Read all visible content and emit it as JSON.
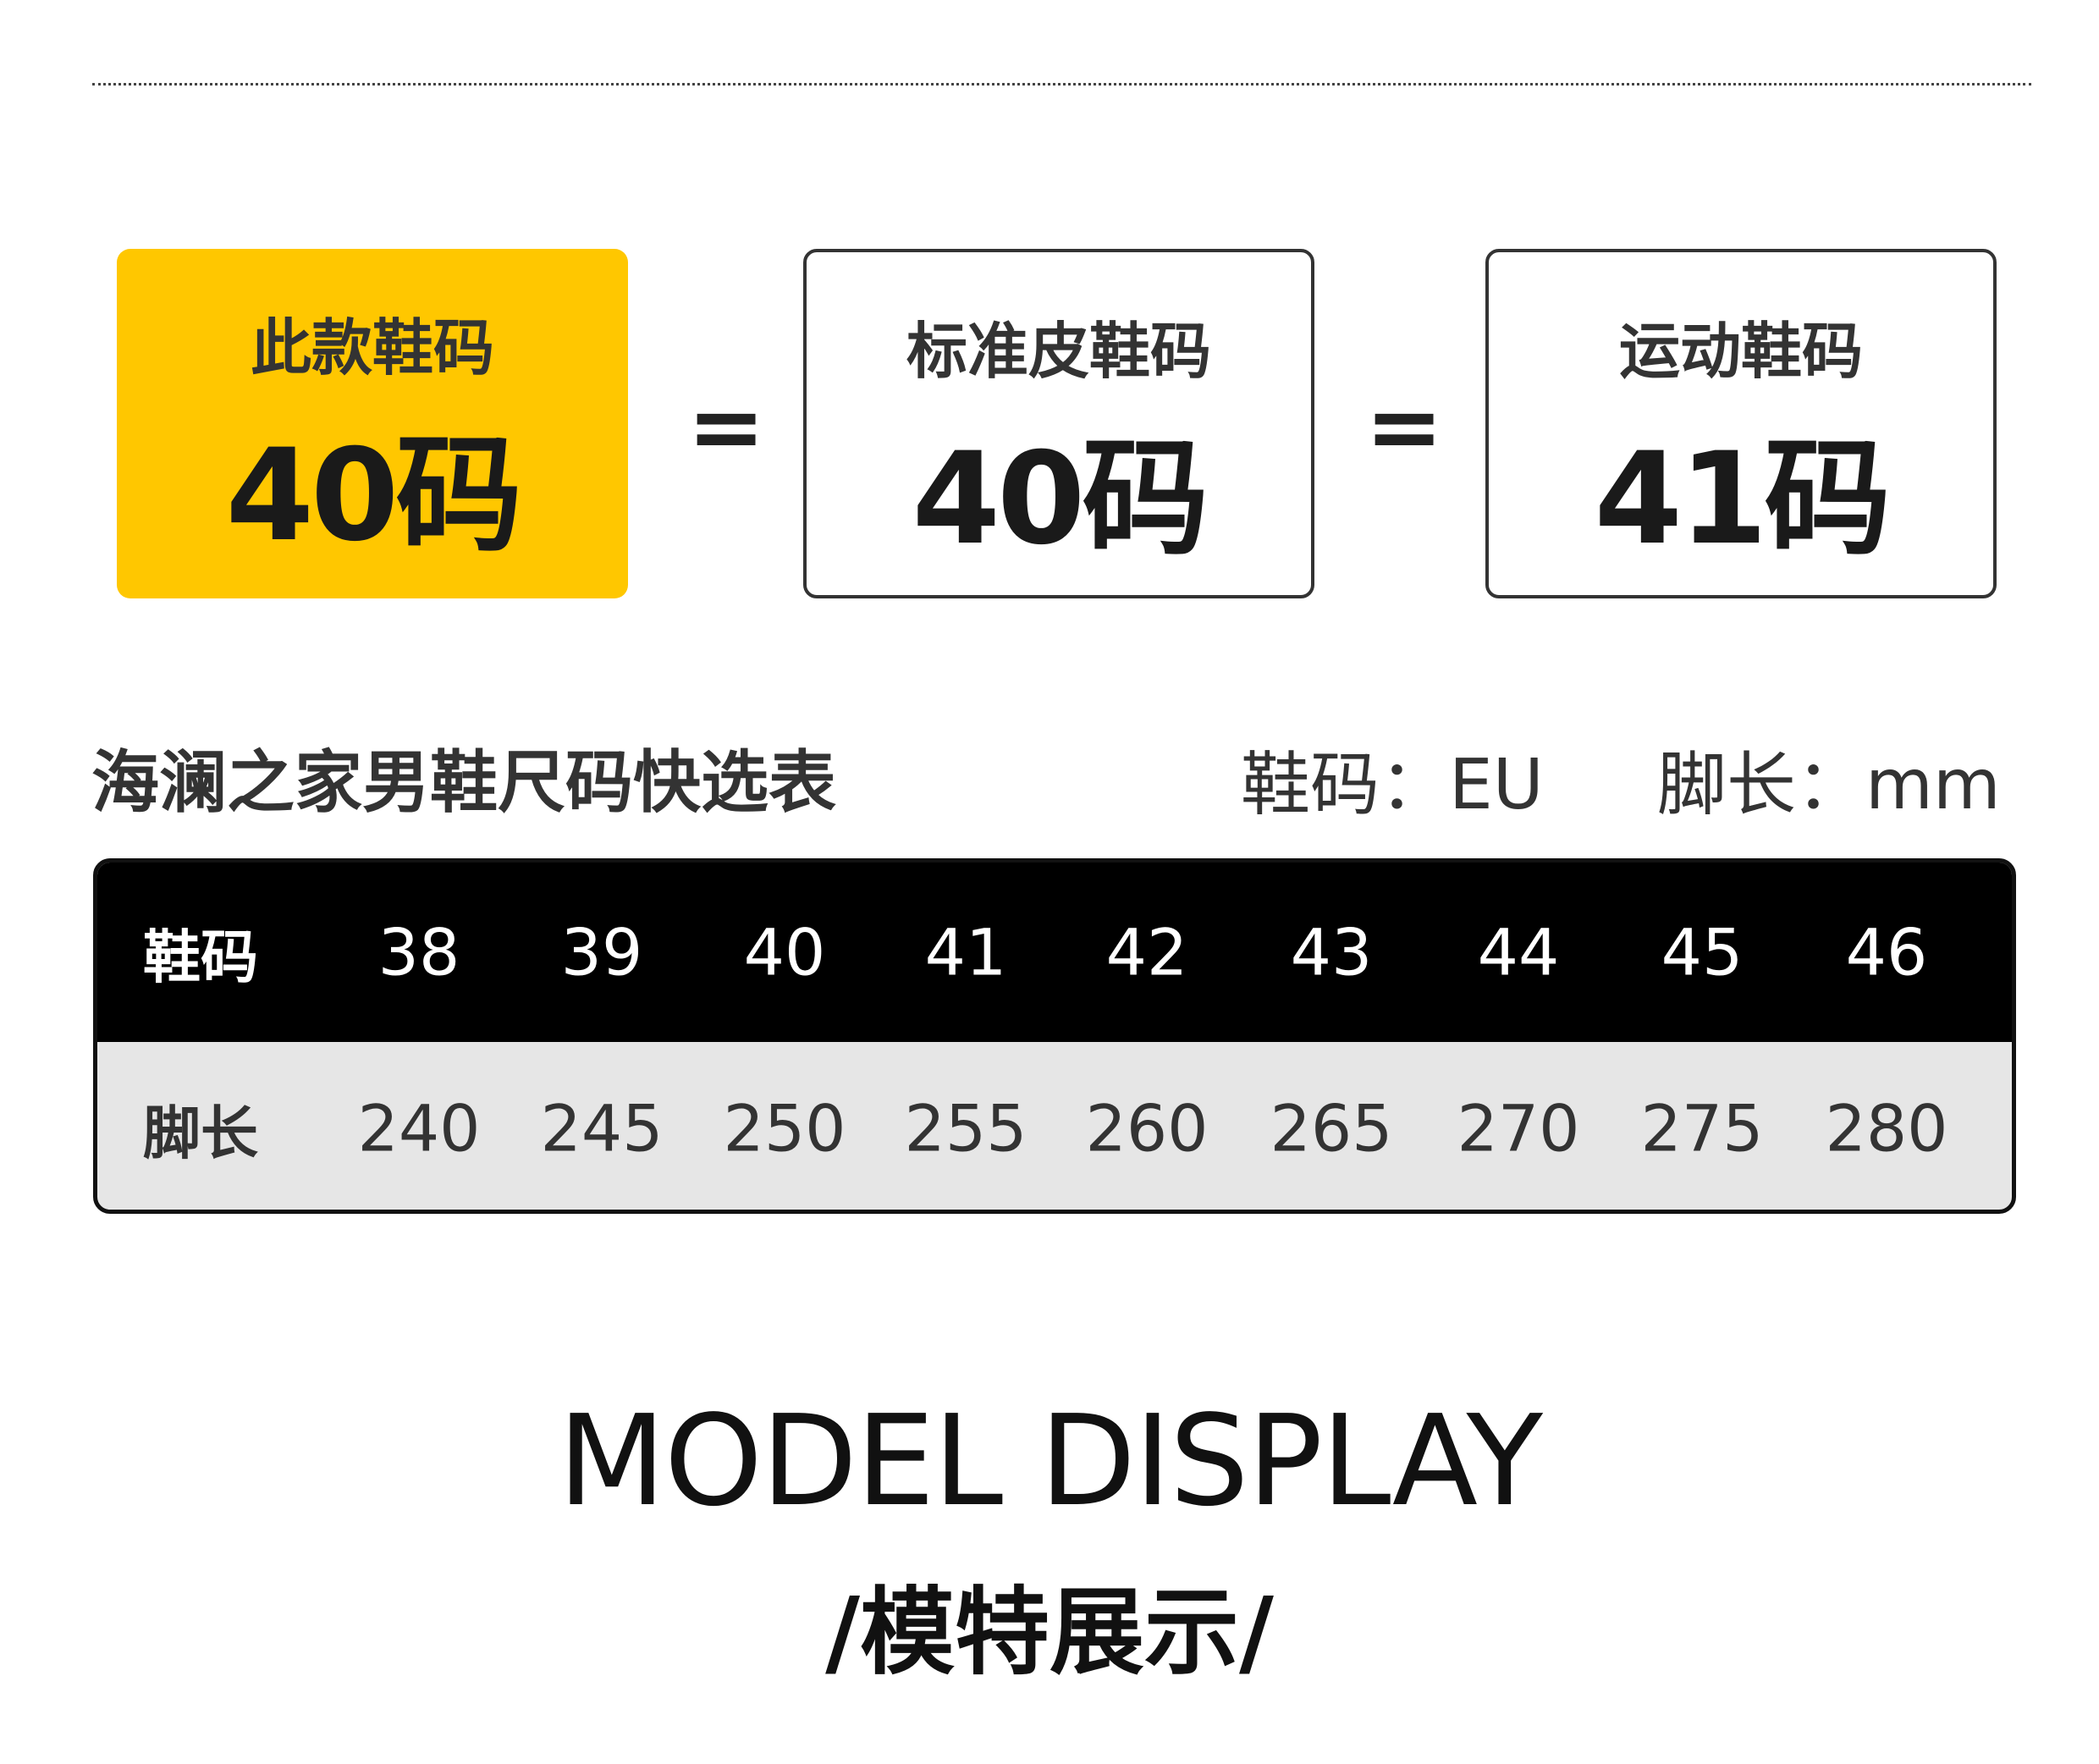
{
  "comparison": {
    "this_model": {
      "label": "此款鞋码",
      "value": "40码"
    },
    "standard_leather": {
      "label": "标准皮鞋码",
      "value": "40码"
    },
    "sports": {
      "label": "运动鞋码",
      "value": "41码"
    },
    "equals": "=",
    "highlight_color": "#FFC700"
  },
  "size_table": {
    "title": "海澜之家男鞋尺码快选表",
    "size_unit": "鞋码：EU",
    "length_unit": "脚长：mm",
    "rows": [
      {
        "label": "鞋码",
        "values": [
          "38",
          "39",
          "40",
          "41",
          "42",
          "43",
          "44",
          "45",
          "46"
        ]
      },
      {
        "label": "脚长",
        "values": [
          "240",
          "245",
          "250",
          "255",
          "260",
          "265",
          "270",
          "275",
          "280"
        ]
      }
    ]
  },
  "section": {
    "title_en": "MODEL DISPLAY",
    "title_cn": "/模特展示/"
  }
}
